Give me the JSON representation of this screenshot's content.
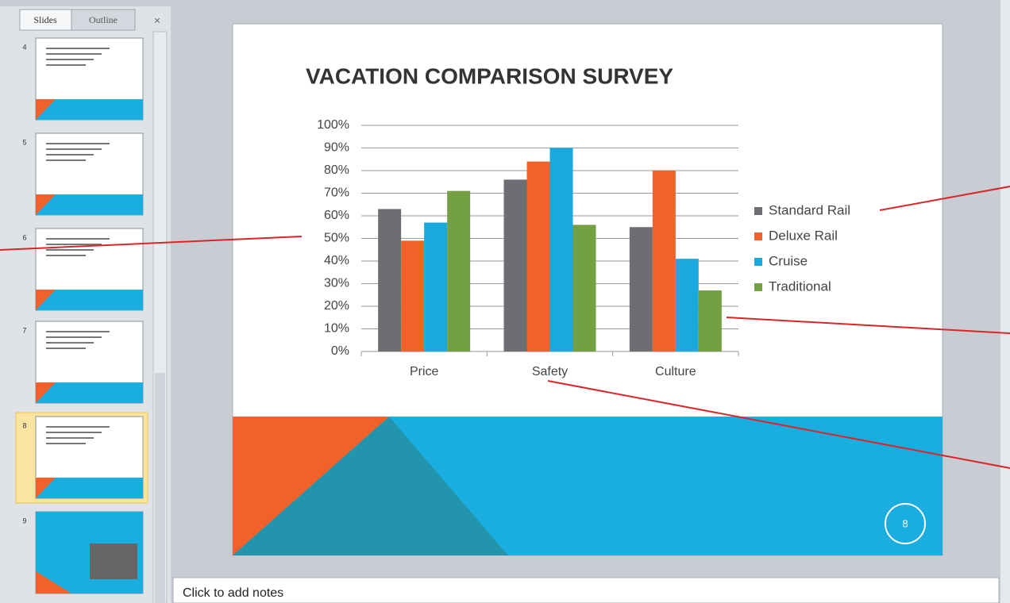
{
  "panel": {
    "tabs": [
      "Slides",
      "Outline"
    ],
    "slide_numbers": [
      "4",
      "5",
      "6",
      "7",
      "8",
      "9"
    ]
  },
  "notes": "Click to add notes",
  "slide_number": "8",
  "chart_data": {
    "type": "bar",
    "title": "VACATION COMPARISON SURVEY",
    "categories": [
      "Price",
      "Safety",
      "Culture"
    ],
    "series": [
      {
        "name": "Standard Rail",
        "color": "#6d6e71",
        "values": [
          63,
          76,
          55
        ]
      },
      {
        "name": "Deluxe Rail",
        "color": "#f0622a",
        "values": [
          49,
          84,
          80
        ]
      },
      {
        "name": "Cruise",
        "color": "#1ba8dd",
        "values": [
          57,
          90,
          41
        ]
      },
      {
        "name": "Traditional",
        "color": "#72a043",
        "values": [
          71,
          56,
          27
        ]
      }
    ],
    "ylim": [
      0,
      100
    ],
    "yticks": [
      {
        "value": 0,
        "label": "0%"
      },
      {
        "value": 10,
        "label": "10%"
      },
      {
        "value": 20,
        "label": "20%"
      },
      {
        "value": 30,
        "label": "30%"
      },
      {
        "value": 40,
        "label": "40%"
      },
      {
        "value": 50,
        "label": "50%"
      },
      {
        "value": 60,
        "label": "60%"
      },
      {
        "value": 70,
        "label": "70%"
      },
      {
        "value": 80,
        "label": "80%"
      },
      {
        "value": 90,
        "label": "90%"
      },
      {
        "value": 100,
        "label": "100%"
      }
    ],
    "grid": true,
    "legend": "right"
  }
}
